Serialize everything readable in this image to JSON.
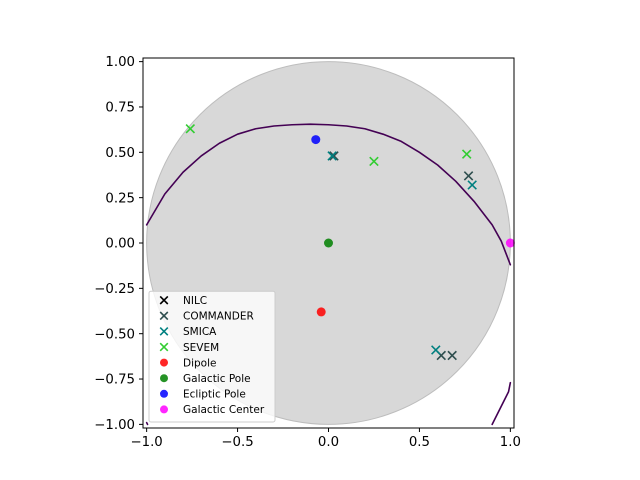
{
  "chart_data": {
    "type": "scatter",
    "title": "",
    "xlabel": "",
    "ylabel": "",
    "xlim": [
      -1.02,
      1.02
    ],
    "ylim": [
      -1.02,
      1.02
    ],
    "grid": false,
    "aspect": "equal",
    "x_ticks": [
      -1.0,
      -0.5,
      0.0,
      0.5,
      1.0
    ],
    "x_tick_labels": [
      "−1.0",
      "−0.5",
      "0.0",
      "0.5",
      "1.0"
    ],
    "y_ticks": [
      1.0,
      0.75,
      0.5,
      0.25,
      0.0,
      -0.25,
      -0.5,
      -0.75,
      -1.0
    ],
    "y_tick_labels": [
      "1.00",
      "0.75",
      "0.50",
      "0.25",
      "0.00",
      "−0.25",
      "−0.50",
      "−0.75",
      "−1.00"
    ],
    "background_disk": {
      "center": [
        0,
        0
      ],
      "radius": 1.0,
      "fill": "#d8d8d8",
      "edge": "#bdbdbd"
    },
    "curves": [
      {
        "color": "#440154",
        "points": [
          [
            -1.0,
            0.1
          ],
          [
            -0.9,
            0.27
          ],
          [
            -0.8,
            0.39
          ],
          [
            -0.7,
            0.48
          ],
          [
            -0.6,
            0.55
          ],
          [
            -0.5,
            0.6
          ],
          [
            -0.4,
            0.63
          ],
          [
            -0.3,
            0.645
          ],
          [
            -0.2,
            0.652
          ],
          [
            -0.1,
            0.655
          ],
          [
            0.0,
            0.652
          ],
          [
            0.1,
            0.645
          ],
          [
            0.2,
            0.63
          ],
          [
            0.3,
            0.6
          ],
          [
            0.4,
            0.56
          ],
          [
            0.5,
            0.5
          ],
          [
            0.6,
            0.43
          ],
          [
            0.7,
            0.34
          ],
          [
            0.8,
            0.23
          ],
          [
            0.9,
            0.1
          ],
          [
            0.95,
            0.01
          ],
          [
            1.0,
            -0.12
          ]
        ]
      },
      {
        "color": "#440154",
        "points": [
          [
            0.9,
            -1.0
          ],
          [
            0.95,
            -0.9
          ],
          [
            0.99,
            -0.82
          ],
          [
            1.0,
            -0.77
          ]
        ]
      },
      {
        "color": "#440154",
        "points": [
          [
            -1.0,
            -0.99
          ],
          [
            -0.995,
            -1.0
          ]
        ]
      }
    ],
    "legend": {
      "placement": "lower-left"
    },
    "series": [
      {
        "name": "NILC",
        "marker": "x",
        "color": "#000000",
        "points": []
      },
      {
        "name": "COMMANDER",
        "marker": "x",
        "color": "#2f4f4f",
        "points": [
          [
            0.03,
            0.48
          ],
          [
            0.77,
            0.37
          ],
          [
            0.62,
            -0.62
          ],
          [
            0.68,
            -0.62
          ]
        ]
      },
      {
        "name": "SMICA",
        "marker": "x",
        "color": "#008080",
        "points": [
          [
            0.02,
            0.48
          ],
          [
            0.79,
            0.32
          ],
          [
            0.59,
            -0.59
          ]
        ]
      },
      {
        "name": "SEVEM",
        "marker": "x",
        "color": "#32cd32",
        "points": [
          [
            -0.76,
            0.63
          ],
          [
            0.25,
            0.45
          ],
          [
            0.76,
            0.49
          ]
        ]
      },
      {
        "name": "Dipole",
        "marker": "o",
        "color": "#ff0000",
        "points": [
          [
            -0.04,
            -0.38
          ]
        ]
      },
      {
        "name": "Galactic Pole",
        "marker": "o",
        "color": "#008000",
        "points": [
          [
            0.0,
            0.0
          ]
        ]
      },
      {
        "name": "Ecliptic Pole",
        "marker": "o",
        "color": "#0000ff",
        "points": [
          [
            -0.07,
            0.57
          ]
        ]
      },
      {
        "name": "Galactic Center",
        "marker": "o",
        "color": "#ff00ff",
        "points": [
          [
            1.0,
            0.0
          ]
        ]
      }
    ]
  }
}
